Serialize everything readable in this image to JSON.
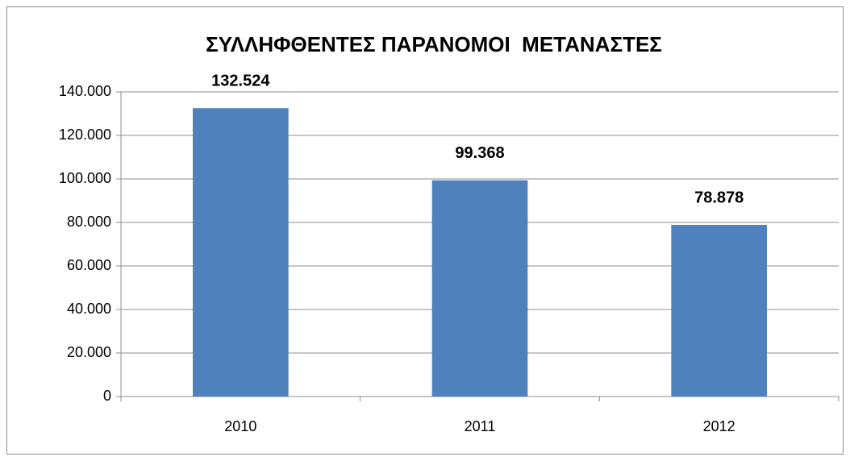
{
  "chart_data": {
    "type": "bar",
    "title": "ΣΥΛΛΗΦΘΕΝΤΕΣ ΠΑΡΑΝΟΜΟΙ  ΜΕΤΑΝΑΣΤΕΣ",
    "categories": [
      "2010",
      "2011",
      "2012"
    ],
    "values": [
      132524,
      99368,
      78878
    ],
    "value_labels": [
      "132.524",
      "99.368",
      "78.878"
    ],
    "color": "#4f81bd",
    "ylim": [
      0,
      140000
    ],
    "yticks": [
      0,
      {
        "value": 20000,
        "label": "20.000"
      },
      {
        "value": 40000,
        "label": "40.000"
      },
      {
        "value": 60000,
        "label": "60.000"
      },
      {
        "value": 80000,
        "label": "80.000"
      },
      {
        "value": 100000,
        "label": "100.000"
      },
      {
        "value": 120000,
        "label": "120.000"
      },
      {
        "value": 140000,
        "label": "140.000"
      }
    ],
    "grid": true
  }
}
